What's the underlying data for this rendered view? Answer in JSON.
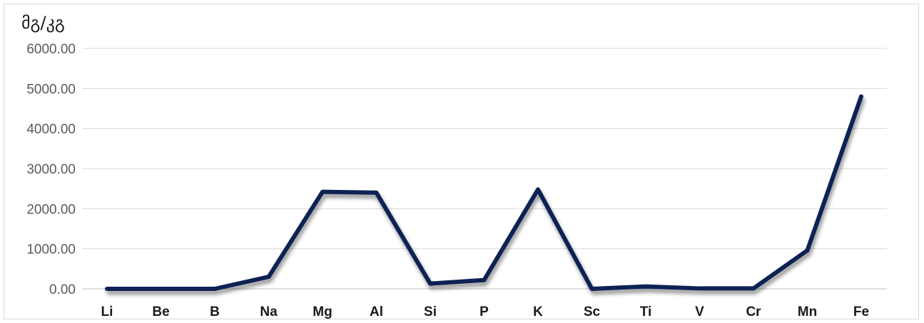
{
  "chart_data": {
    "type": "line",
    "ylabel": "მგ/კგ",
    "categories": [
      "Li",
      "Be",
      "B",
      "Na",
      "Mg",
      "Al",
      "Si",
      "P",
      "K",
      "Sc",
      "Ti",
      "V",
      "Cr",
      "Mn",
      "Fe"
    ],
    "series": [
      {
        "values": [
          0,
          0,
          0,
          300,
          2420,
          2400,
          130,
          220,
          2480,
          0,
          60,
          10,
          10,
          960,
          4800
        ]
      }
    ],
    "yticks": [
      "0.00",
      "1000.00",
      "2000.00",
      "3000.00",
      "4000.00",
      "5000.00",
      "6000.00"
    ],
    "ylim": [
      0,
      6000
    ],
    "grid": true,
    "line_color": "#0f2453"
  }
}
